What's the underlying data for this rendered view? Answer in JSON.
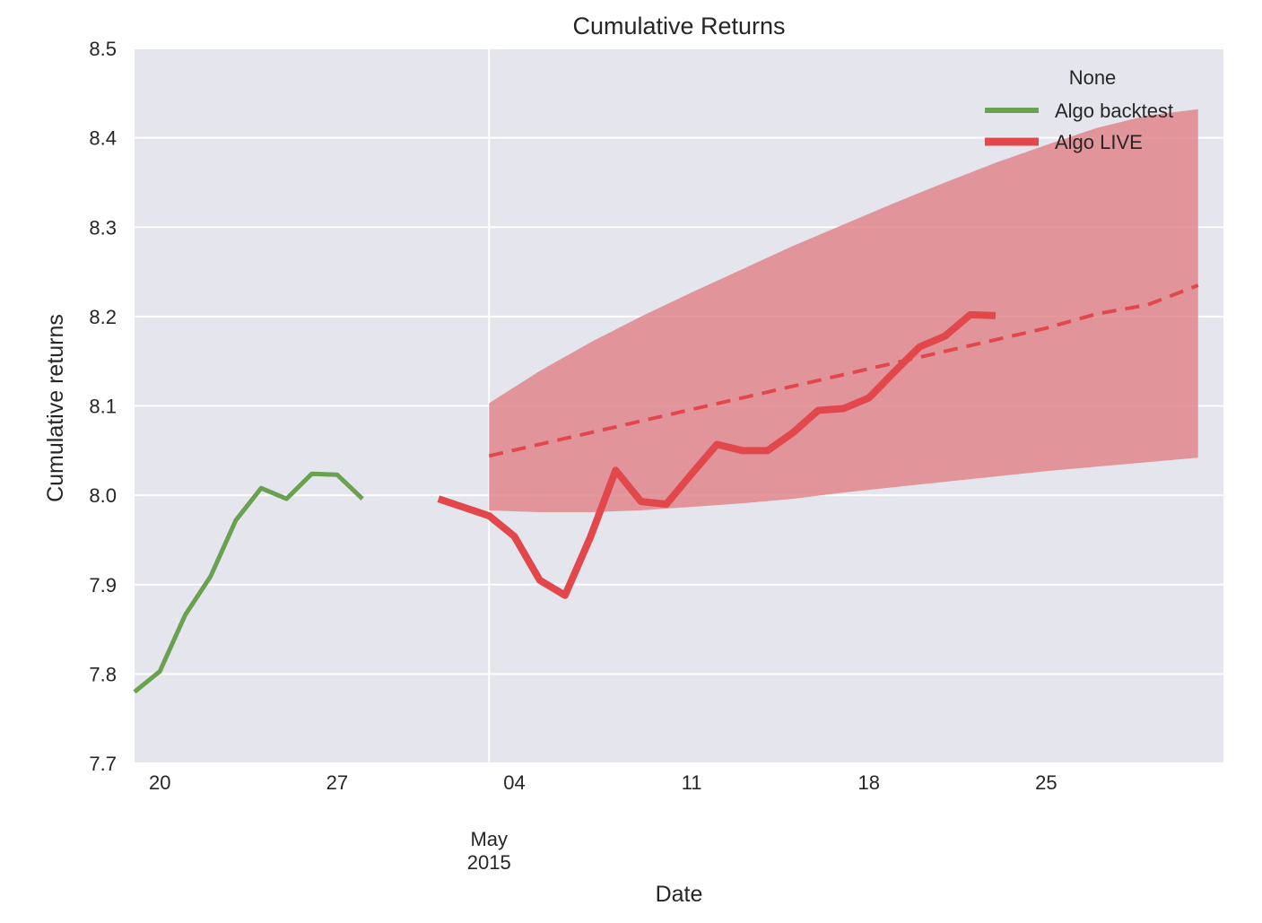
{
  "chart_data": {
    "type": "line",
    "title": "Cumulative Returns",
    "xlabel": "Date",
    "ylabel": "Cumulative returns",
    "ylim": [
      7.7,
      8.5
    ],
    "yticks": [
      "7.7",
      "7.8",
      "7.9",
      "8.0",
      "8.1",
      "8.2",
      "8.3",
      "8.4",
      "8.5"
    ],
    "xlim": [
      "2015-04-19",
      "2015-06-01"
    ],
    "xticks": [
      {
        "date": "2015-04-20",
        "label": "20"
      },
      {
        "date": "2015-04-27",
        "label": "27"
      },
      {
        "date": "2015-05-04",
        "label": "04"
      },
      {
        "date": "2015-05-11",
        "label": "11"
      },
      {
        "date": "2015-05-18",
        "label": "18"
      },
      {
        "date": "2015-05-25",
        "label": "25"
      }
    ],
    "xtick_month_label": {
      "date": "2015-05-03",
      "lines": [
        "May",
        "2015"
      ]
    },
    "vline_date": "2015-05-03",
    "grid": true,
    "legend": {
      "title": "None",
      "position": "top-right",
      "entries": [
        "Algo backtest",
        "Algo LIVE"
      ]
    },
    "colors": {
      "backtest": "#6aa151",
      "live": "#e1474b",
      "cone": "#e0878c",
      "background": "#e5e5ee",
      "grid": "#ffffff"
    },
    "series": [
      {
        "name": "Algo backtest",
        "color": "#6aa151",
        "x": [
          "2015-04-19",
          "2015-04-20",
          "2015-04-21",
          "2015-04-22",
          "2015-04-23",
          "2015-04-24",
          "2015-04-25",
          "2015-04-26",
          "2015-04-27",
          "2015-04-28",
          "2015-04-29",
          "2015-04-30"
        ],
        "y": [
          7.78,
          7.803,
          7.866,
          7.909,
          7.972,
          8.008,
          7.996,
          8.024,
          8.023,
          7.996,
          null,
          null
        ]
      },
      {
        "name": "Algo LIVE",
        "color": "#e1474b",
        "x": [
          "2015-05-01",
          "2015-05-02",
          "2015-05-03",
          "2015-05-04",
          "2015-05-05",
          "2015-05-06",
          "2015-05-07",
          "2015-05-08",
          "2015-05-09",
          "2015-05-10",
          "2015-05-11",
          "2015-05-12",
          "2015-05-13",
          "2015-05-14",
          "2015-05-15",
          "2015-05-16",
          "2015-05-17",
          "2015-05-18",
          "2015-05-19",
          "2015-05-20",
          "2015-05-21",
          "2015-05-22",
          "2015-05-23",
          "2015-05-24",
          "2015-05-25",
          "2015-05-26",
          "2015-05-27",
          "2015-05-28",
          "2015-05-29",
          "2015-05-30",
          "2015-05-31",
          "2015-06-01"
        ],
        "y": [
          7.996,
          null,
          7.977,
          7.954,
          7.905,
          7.888,
          7.953,
          8.028,
          7.993,
          7.99,
          8.024,
          8.057,
          8.05,
          8.05,
          8.07,
          8.095,
          8.097,
          8.109,
          8.138,
          8.166,
          8.178,
          8.202,
          8.201,
          null,
          null,
          null,
          null,
          null,
          null,
          null,
          null,
          null
        ]
      }
    ],
    "cone": {
      "x": [
        "2015-05-03",
        "2015-05-05",
        "2015-05-07",
        "2015-05-09",
        "2015-05-11",
        "2015-05-13",
        "2015-05-15",
        "2015-05-17",
        "2015-05-19",
        "2015-05-21",
        "2015-05-23",
        "2015-05-25",
        "2015-05-27",
        "2015-05-29",
        "2015-05-31"
      ],
      "upper": [
        8.103,
        8.139,
        8.171,
        8.2,
        8.227,
        8.253,
        8.279,
        8.303,
        8.327,
        8.35,
        8.372,
        8.392,
        8.411,
        8.425,
        8.432
      ],
      "lower": [
        7.983,
        7.981,
        7.981,
        7.983,
        7.987,
        7.991,
        7.996,
        8.003,
        8.009,
        8.015,
        8.021,
        8.027,
        8.032,
        8.037,
        8.042
      ],
      "median": [
        8.044,
        8.057,
        8.07,
        8.083,
        8.096,
        8.109,
        8.122,
        8.135,
        8.148,
        8.161,
        8.174,
        8.187,
        8.203,
        8.213,
        8.235
      ]
    }
  }
}
